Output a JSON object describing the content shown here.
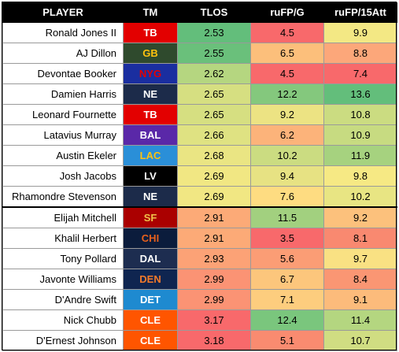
{
  "headers": [
    "PLAYER",
    "TM",
    "TLOS",
    "ruFP/G",
    "ruFP/15Att"
  ],
  "rows": [
    {
      "player": "Ronald Jones II",
      "team": "TB",
      "team_bg": "#e30000",
      "team_fg": "#ffffff",
      "tlos": "2.53",
      "tlos_bg": "#63be7b",
      "fpg": "4.5",
      "fpg_bg": "#f8696b",
      "fp15": "9.9",
      "fp15_bg": "#f3e884"
    },
    {
      "player": "AJ Dillon",
      "team": "GB",
      "team_bg": "#2f4a2d",
      "team_fg": "#ffc20e",
      "tlos": "2.55",
      "tlos_bg": "#6ac07b",
      "fpg": "6.5",
      "fpg_bg": "#fcbf7b",
      "fp15": "8.8",
      "fp15_bg": "#fca77a"
    },
    {
      "player": "Devontae Booker",
      "team": "NYG",
      "team_bg": "#1a2ea0",
      "team_fg": "#e30000",
      "tlos": "2.62",
      "tlos_bg": "#b5d680",
      "fpg": "4.5",
      "fpg_bg": "#f8696b",
      "fp15": "7.4",
      "fp15_bg": "#f8696b"
    },
    {
      "player": "Damien Harris",
      "team": "NE",
      "team_bg": "#1c2b4a",
      "team_fg": "#ffffff",
      "tlos": "2.65",
      "tlos_bg": "#d6df81",
      "fpg": "12.2",
      "fpg_bg": "#84c87d",
      "fp15": "13.6",
      "fp15_bg": "#63be7b"
    },
    {
      "player": "Leonard Fournette",
      "team": "TB",
      "team_bg": "#e30000",
      "team_fg": "#ffffff",
      "tlos": "2.65",
      "tlos_bg": "#d6df81",
      "fpg": "9.2",
      "fpg_bg": "#ece383",
      "fp15": "10.8",
      "fp15_bg": "#cbdc81"
    },
    {
      "player": "Latavius Murray",
      "team": "BAL",
      "team_bg": "#5a28a8",
      "team_fg": "#ffffff",
      "tlos": "2.66",
      "tlos_bg": "#dfe282",
      "fpg": "6.2",
      "fpg_bg": "#fcb37a",
      "fp15": "10.9",
      "fp15_bg": "#c7db81"
    },
    {
      "player": "Austin Ekeler",
      "team": "LAC",
      "team_bg": "#2a8fd8",
      "team_fg": "#ffc20e",
      "tlos": "2.68",
      "tlos_bg": "#eae583",
      "fpg": "10.2",
      "fpg_bg": "#cbdc81",
      "fp15": "11.9",
      "fp15_bg": "#a6d27f"
    },
    {
      "player": "Josh Jacobs",
      "team": "LV",
      "team_bg": "#000000",
      "team_fg": "#ffffff",
      "tlos": "2.69",
      "tlos_bg": "#f1e783",
      "fpg": "9.4",
      "fpg_bg": "#e7e283",
      "fp15": "9.8",
      "fp15_bg": "#f6e984"
    },
    {
      "player": "Rhamondre Stevenson",
      "team": "NE",
      "team_bg": "#1c2b4a",
      "team_fg": "#ffffff",
      "tlos": "2.69",
      "tlos_bg": "#f1e783",
      "fpg": "7.6",
      "fpg_bg": "#fedc81",
      "fp15": "10.2",
      "fp15_bg": "#e8e583"
    },
    {
      "player": "Elijah Mitchell",
      "team": "SF",
      "team_bg": "#aa0000",
      "team_fg": "#f0c24a",
      "tlos": "2.91",
      "tlos_bg": "#fcaa77",
      "fpg": "11.5",
      "fpg_bg": "#a2d07f",
      "fp15": "9.2",
      "fp15_bg": "#fcc17c"
    },
    {
      "player": "Khalil Herbert",
      "team": "CHI",
      "team_bg": "#0b1c3c",
      "team_fg": "#e8601c",
      "tlos": "2.91",
      "tlos_bg": "#fcaa77",
      "fpg": "3.5",
      "fpg_bg": "#f8696b",
      "fp15": "8.1",
      "fp15_bg": "#f98970"
    },
    {
      "player": "Tony Pollard",
      "team": "DAL",
      "team_bg": "#1d2d50",
      "team_fg": "#ffffff",
      "tlos": "2.93",
      "tlos_bg": "#fca276",
      "fpg": "5.6",
      "fpg_bg": "#fb9d75",
      "fp15": "9.7",
      "fp15_bg": "#f9e183"
    },
    {
      "player": "Javonte Williams",
      "team": "DEN",
      "team_bg": "#0f2550",
      "team_fg": "#f47a2a",
      "tlos": "2.99",
      "tlos_bg": "#fb9374",
      "fpg": "6.7",
      "fpg_bg": "#fcc67c",
      "fp15": "8.4",
      "fp15_bg": "#fa9673"
    },
    {
      "player": "D'Andre Swift",
      "team": "DET",
      "team_bg": "#1e8ad0",
      "team_fg": "#ffffff",
      "tlos": "2.99",
      "tlos_bg": "#fb9374",
      "fpg": "7.1",
      "fpg_bg": "#fdcd7e",
      "fp15": "9.1",
      "fp15_bg": "#fcbb7b"
    },
    {
      "player": "Nick Chubb",
      "team": "CLE",
      "team_bg": "#ff5500",
      "team_fg": "#ffffff",
      "tlos": "3.17",
      "tlos_bg": "#f8696b",
      "fpg": "12.4",
      "fpg_bg": "#7ac67d",
      "fp15": "11.4",
      "fp15_bg": "#b4d680"
    },
    {
      "player": "D'Ernest Johnson",
      "team": "CLE",
      "team_bg": "#ff5500",
      "team_fg": "#ffffff",
      "tlos": "3.18",
      "tlos_bg": "#f8696b",
      "fpg": "5.1",
      "fpg_bg": "#f98b70",
      "fp15": "10.7",
      "fp15_bg": "#d0dd82"
    }
  ]
}
